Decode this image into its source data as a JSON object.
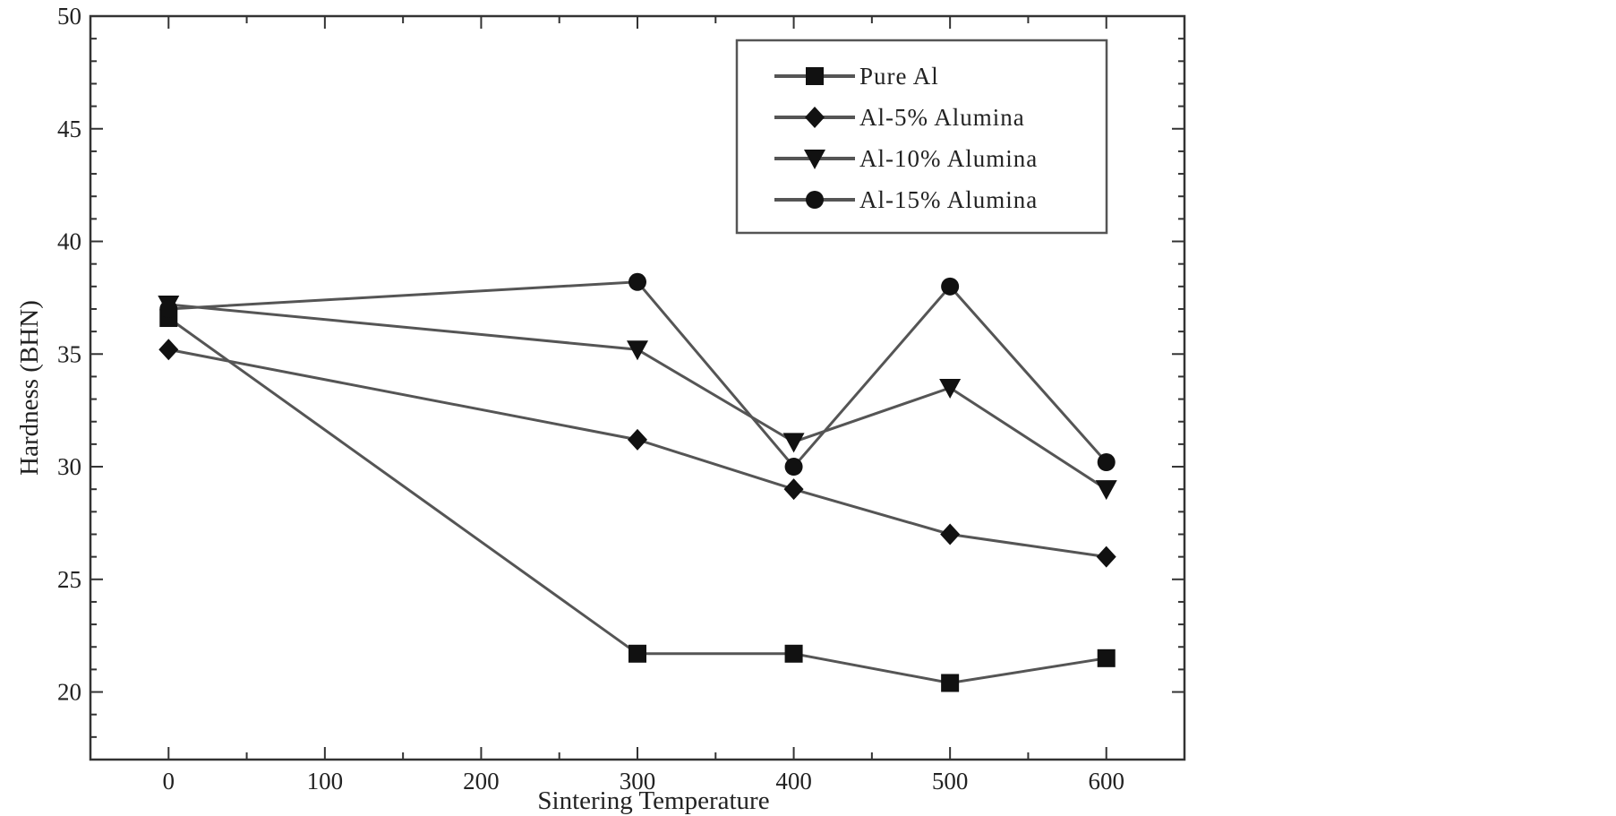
{
  "chart_data": {
    "type": "line",
    "title": "",
    "xlabel": "Sintering Temperature",
    "ylabel": "Hardness (BHN)",
    "xlim": [
      -50,
      650
    ],
    "ylim": [
      17,
      50
    ],
    "xticks": [
      0,
      100,
      200,
      300,
      400,
      500,
      600
    ],
    "yticks": [
      20,
      25,
      30,
      35,
      40,
      45,
      50
    ],
    "grid": false,
    "legend_position": "top-right",
    "line_color": "#555555",
    "marker_color": "#111111",
    "series": [
      {
        "name": "Pure Al",
        "marker": "square",
        "x": [
          0,
          300,
          400,
          500,
          600
        ],
        "y": [
          36.6,
          21.7,
          21.7,
          20.4,
          21.5
        ]
      },
      {
        "name": "Al-5% Alumina",
        "marker": "diamond",
        "x": [
          0,
          300,
          400,
          500,
          600
        ],
        "y": [
          35.2,
          31.2,
          29.0,
          27.0,
          26.0
        ]
      },
      {
        "name": "Al-10% Alumina",
        "marker": "triangle-down",
        "x": [
          0,
          300,
          400,
          500,
          600
        ],
        "y": [
          37.2,
          35.2,
          31.1,
          33.5,
          29.0
        ]
      },
      {
        "name": "Al-15% Alumina",
        "marker": "circle",
        "x": [
          0,
          300,
          400,
          500,
          600
        ],
        "y": [
          37.0,
          38.2,
          30.0,
          38.0,
          30.2
        ]
      }
    ]
  }
}
